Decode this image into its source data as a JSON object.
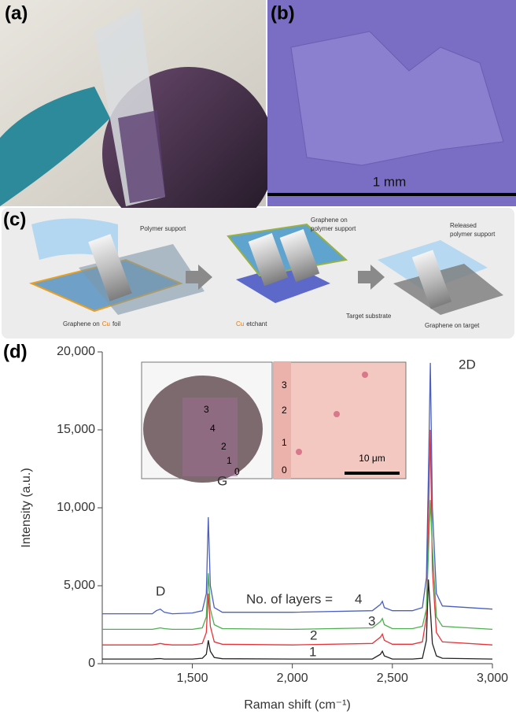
{
  "panels": {
    "a": {
      "label": "(a)"
    },
    "b": {
      "label": "(b)",
      "scale_bar": "1 mm"
    },
    "c": {
      "label": "(c)",
      "polymer_support": "Polymer support",
      "graphene_on_cu": [
        "Graphene on",
        "Cu",
        "foil"
      ],
      "cu_etchant": [
        "Cu",
        "etchant"
      ],
      "graphene_on_polymer": [
        "Graphene on",
        "polymer support"
      ],
      "released_polymer": [
        "Released",
        "polymer support"
      ],
      "target_substrate": "Target substrate",
      "graphene_on_target": "Graphene on target"
    }
  },
  "chart_data": {
    "type": "line",
    "panel_label": "(d)",
    "x_label": "Raman shift (cm⁻¹)",
    "y_label": "Intensity (a.u.)",
    "xlim": [
      1050,
      3000
    ],
    "ylim": [
      0,
      20000
    ],
    "xticks": [
      {
        "value": 1500,
        "label": "1,500"
      },
      {
        "value": 2000,
        "label": "2,000"
      },
      {
        "value": 2500,
        "label": "2,500"
      },
      {
        "value": 3000,
        "label": "3,000"
      }
    ],
    "yticks": [
      0,
      {
        "value": 5000,
        "label": "5,000"
      },
      {
        "value": 10000,
        "label": "10,000"
      },
      {
        "value": 15000,
        "label": "15,000"
      },
      {
        "value": 20000,
        "label": "20,000"
      }
    ],
    "annotations": {
      "d_peak": "D",
      "g_peak": "G",
      "2d_peak": "2D",
      "layers": "No. of layers ="
    },
    "insets": {
      "wafer_labels": [
        "3",
        "4",
        "2",
        "1",
        "0"
      ],
      "map_labels": [
        "3",
        "2",
        "1",
        "0"
      ],
      "scale_bar": "10 μm"
    },
    "x": [
      1050,
      1300,
      1320,
      1340,
      1360,
      1400,
      1500,
      1550,
      1570,
      1580,
      1590,
      1610,
      1650,
      2000,
      2400,
      2440,
      2450,
      2460,
      2500,
      2600,
      2650,
      2670,
      2680,
      2690,
      2700,
      2720,
      2750,
      3000
    ],
    "series": [
      {
        "name": "1",
        "color": "#222222",
        "values": [
          300,
          300,
          320,
          330,
          300,
          300,
          300,
          350,
          600,
          1500,
          800,
          400,
          320,
          300,
          300,
          600,
          800,
          500,
          300,
          300,
          350,
          1500,
          5400,
          3500,
          1300,
          500,
          350,
          300
        ]
      },
      {
        "name": "2",
        "color": "#e8333a",
        "values": [
          1200,
          1200,
          1250,
          1300,
          1250,
          1200,
          1200,
          1300,
          2000,
          4500,
          2400,
          1400,
          1250,
          1200,
          1300,
          1700,
          1900,
          1500,
          1250,
          1250,
          1400,
          3000,
          9000,
          15000,
          6000,
          2000,
          1400,
          1200
        ]
      },
      {
        "name": "3",
        "color": "#4caf50",
        "values": [
          2200,
          2200,
          2250,
          2300,
          2250,
          2200,
          2200,
          2300,
          3000,
          5800,
          3500,
          2500,
          2250,
          2200,
          2300,
          2700,
          2900,
          2500,
          2250,
          2250,
          2400,
          3500,
          7000,
          10500,
          7500,
          3000,
          2400,
          2200
        ]
      },
      {
        "name": "4",
        "color": "#4a5fc1",
        "values": [
          3200,
          3200,
          3400,
          3500,
          3300,
          3200,
          3250,
          3400,
          4500,
          9400,
          5000,
          3600,
          3300,
          3300,
          3400,
          3800,
          4000,
          3600,
          3400,
          3400,
          3600,
          5500,
          12000,
          19300,
          10000,
          4500,
          3700,
          3500
        ]
      }
    ]
  }
}
